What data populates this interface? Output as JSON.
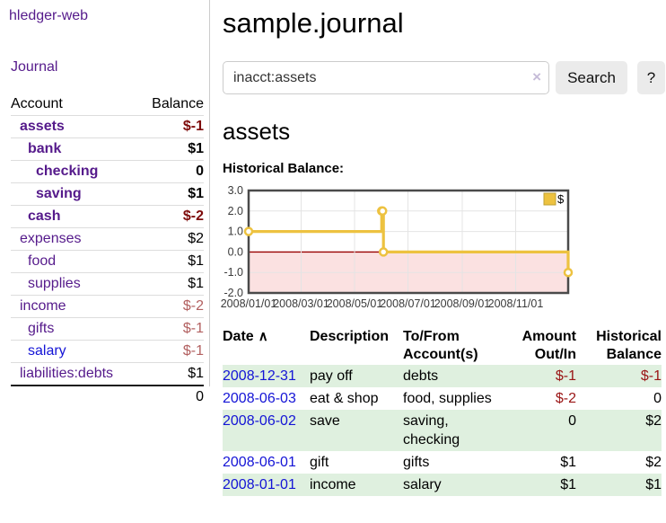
{
  "colors": {
    "link_purple": "#551a8b",
    "link_blue": "#1414d6",
    "negative_bold": "#7d0b0b",
    "negative_soft": "#b26060",
    "negative_table": "#9a1515",
    "row_green": "#dff0df",
    "button_gray": "#ebebeb"
  },
  "sidebar": {
    "brand": "hledger-web",
    "journal_label": "Journal",
    "accounts_table": {
      "headers": {
        "account": "Account",
        "balance": "Balance"
      },
      "rows": [
        {
          "name": "assets",
          "balance": "$-1",
          "depth": 1,
          "in_query": true,
          "balance_negative": true
        },
        {
          "name": "bank",
          "balance": "$1",
          "depth": 2,
          "in_query": true,
          "balance_negative": false
        },
        {
          "name": "checking",
          "balance": "0",
          "depth": 3,
          "in_query": true,
          "balance_negative": false
        },
        {
          "name": "saving",
          "balance": "$1",
          "depth": 3,
          "in_query": true,
          "balance_negative": false
        },
        {
          "name": "cash",
          "balance": "$-2",
          "depth": 2,
          "in_query": true,
          "balance_negative": true
        },
        {
          "name": "expenses",
          "balance": "$2",
          "depth": 1,
          "in_query": false,
          "balance_negative": false
        },
        {
          "name": "food",
          "balance": "$1",
          "depth": 2,
          "in_query": false,
          "balance_negative": false
        },
        {
          "name": "supplies",
          "balance": "$1",
          "depth": 2,
          "in_query": false,
          "balance_negative": false
        },
        {
          "name": "income",
          "balance": "$-2",
          "depth": 1,
          "in_query": false,
          "balance_negative": true
        },
        {
          "name": "gifts",
          "balance": "$-1",
          "depth": 2,
          "in_query": false,
          "balance_negative": true
        },
        {
          "name": "salary",
          "balance": "$-1",
          "depth": 2,
          "in_query": false,
          "balance_negative": true,
          "link_color": "blue"
        },
        {
          "name": "liabilities:debts",
          "balance": "$1",
          "depth": 1,
          "in_query": false,
          "balance_negative": false
        }
      ],
      "total": "0"
    }
  },
  "main": {
    "title": "sample.journal",
    "search": {
      "value": "inacct:assets",
      "clear_icon": "×",
      "button": "Search",
      "help": "?"
    },
    "account_heading": "assets",
    "chart_label": "Historical Balance:"
  },
  "chart_data": {
    "type": "line",
    "step": true,
    "title": "Historical Balance:",
    "series": [
      {
        "name": "$",
        "points": [
          [
            "2008-01-01",
            1
          ],
          [
            "2008-06-01",
            2
          ],
          [
            "2008-06-02",
            2
          ],
          [
            "2008-06-03",
            0
          ],
          [
            "2008-12-31",
            -1
          ]
        ]
      }
    ],
    "xlim": [
      "2008-01-01",
      "2008-12-31"
    ],
    "ylim": [
      -2,
      3
    ],
    "yticks": [
      -2,
      -1,
      0,
      1,
      2,
      3
    ],
    "ytick_labels": [
      "-2.0",
      "-1.0",
      "0.0",
      "1.0",
      "2.0",
      "3.0"
    ],
    "xticks": [
      "2008/01/01",
      "2008/03/01",
      "2008/05/01",
      "2008/07/01",
      "2008/09/01",
      "2008/11/01"
    ],
    "legend_position": "top-right",
    "grid": true,
    "colors": {
      "line": "#edc240",
      "marker_fill": "#ffffff",
      "negative_fill": "#fbe1e1",
      "zero_line": "#990000",
      "grid": "#e4e4e4",
      "border": "#4a4a4a",
      "tick_text": "#3a3a3a",
      "legend_box_border": "#bfa134"
    }
  },
  "register": {
    "headers": {
      "date": "Date",
      "sort_indicator": "∧",
      "description": "Description",
      "to_from": "To/From Account(s)",
      "amount": "Amount Out/In",
      "balance": "Historical Balance"
    },
    "rows": [
      {
        "date": "2008-12-31",
        "description": "pay off",
        "to_from": "debts",
        "amount": "$-1",
        "amount_negative": true,
        "balance": "$-1",
        "balance_negative": true
      },
      {
        "date": "2008-06-03",
        "description": "eat & shop",
        "to_from": "food, supplies",
        "amount": "$-2",
        "amount_negative": true,
        "balance": "0",
        "balance_negative": false
      },
      {
        "date": "2008-06-02",
        "description": "save",
        "to_from": "saving, checking",
        "amount": "0",
        "amount_negative": false,
        "balance": "$2",
        "balance_negative": false
      },
      {
        "date": "2008-06-01",
        "description": "gift",
        "to_from": "gifts",
        "amount": "$1",
        "amount_negative": false,
        "balance": "$2",
        "balance_negative": false
      },
      {
        "date": "2008-01-01",
        "description": "income",
        "to_from": "salary",
        "amount": "$1",
        "amount_negative": false,
        "balance": "$1",
        "balance_negative": false
      }
    ]
  }
}
